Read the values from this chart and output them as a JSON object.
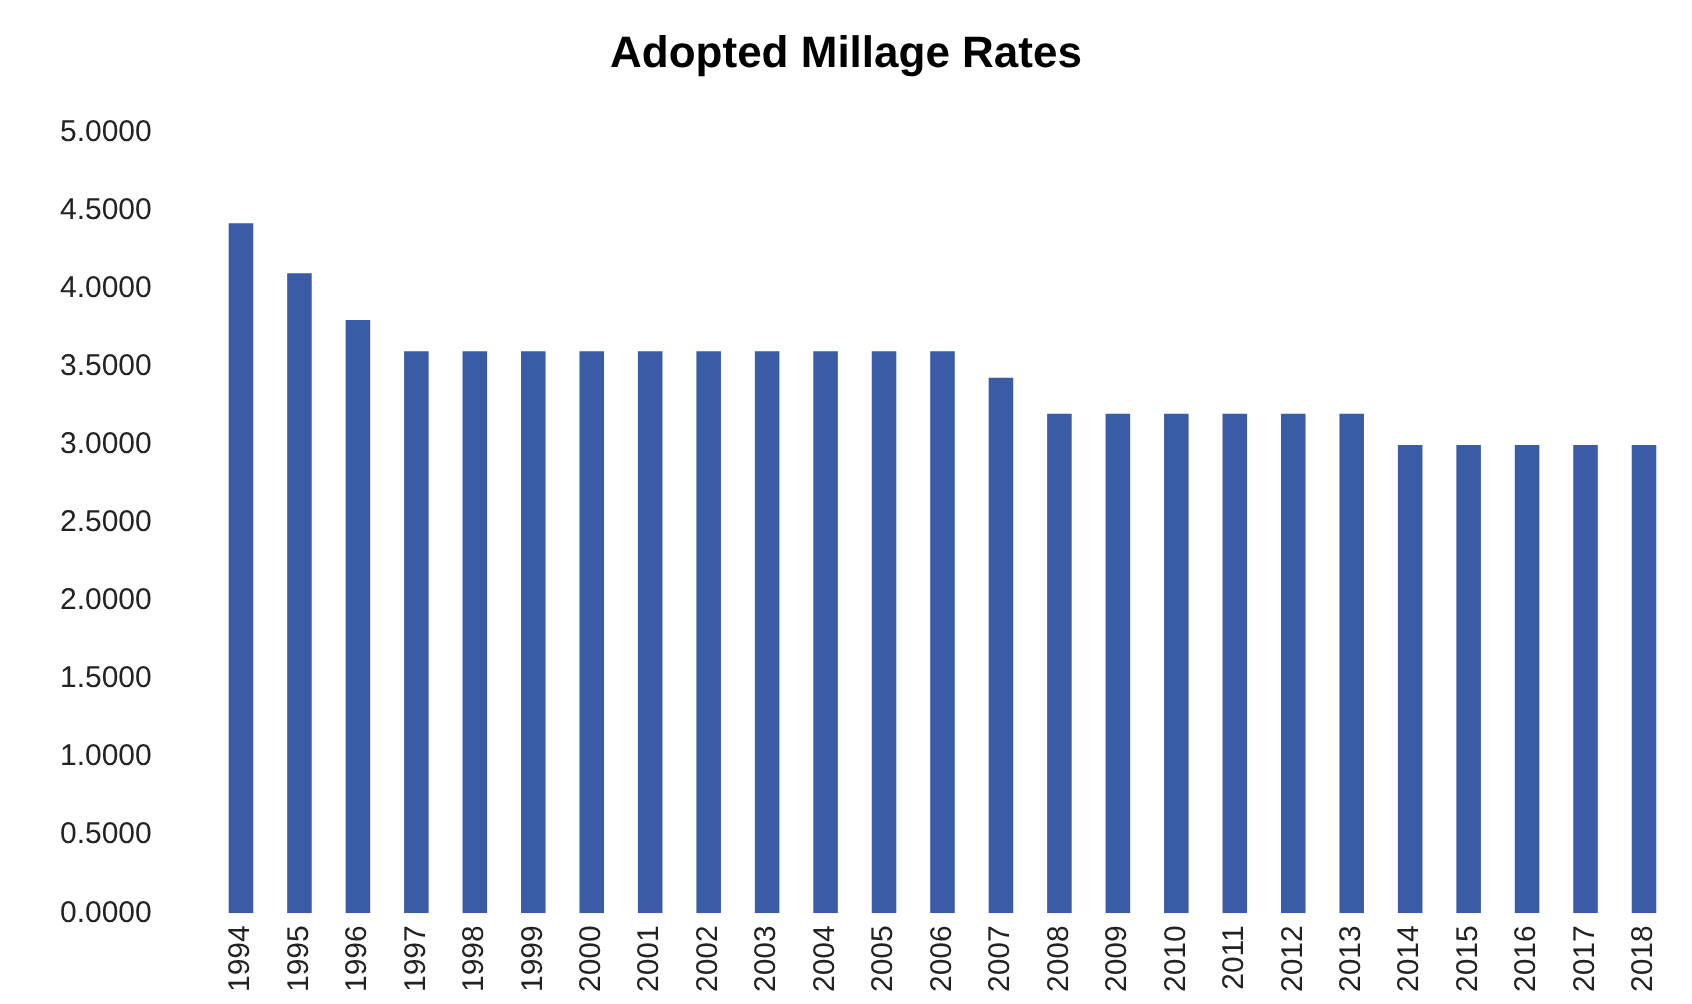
{
  "chart_data": {
    "type": "bar",
    "title": "Adopted Millage Rates",
    "categories": [
      "1994",
      "1995",
      "1996",
      "1997",
      "1998",
      "1999",
      "2000",
      "2001",
      "2002",
      "2003",
      "2004",
      "2005",
      "2006",
      "2007",
      "2008",
      "2009",
      "2010",
      "2011",
      "2012",
      "2013",
      "2014",
      "2015",
      "2016",
      "2017",
      "2018"
    ],
    "values": [
      4.42,
      4.1,
      3.8,
      3.6,
      3.6,
      3.6,
      3.6,
      3.6,
      3.6,
      3.6,
      3.6,
      3.6,
      3.6,
      3.43,
      3.2,
      3.2,
      3.2,
      3.2,
      3.2,
      3.2,
      3.0,
      3.0,
      3.0,
      3.0,
      3.0
    ],
    "color": "#3a5ca6",
    "ylim": [
      0,
      5
    ],
    "yticks": [
      {
        "value": 0,
        "label": "0.0000"
      },
      {
        "value": 0.5,
        "label": "0.5000"
      },
      {
        "value": 1,
        "label": "1.0000"
      },
      {
        "value": 1.5,
        "label": "1.5000"
      },
      {
        "value": 2,
        "label": "2.0000"
      },
      {
        "value": 2.5,
        "label": "2.5000"
      },
      {
        "value": 3,
        "label": "3.0000"
      },
      {
        "value": 3.5,
        "label": "3.5000"
      },
      {
        "value": 4,
        "label": "4.0000"
      },
      {
        "value": 4.5,
        "label": "4.5000"
      },
      {
        "value": 5,
        "label": "5.0000"
      }
    ],
    "grid": false,
    "legend": false
  }
}
